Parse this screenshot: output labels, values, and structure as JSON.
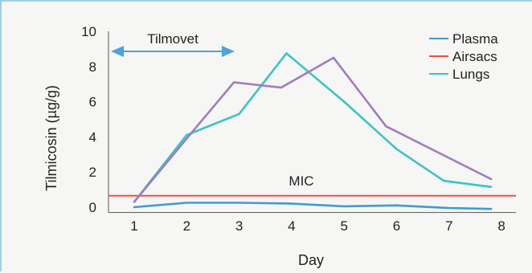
{
  "chart_data": {
    "type": "line",
    "title": "",
    "xlabel": "Day",
    "ylabel": "Tilmicosin (µg/g)",
    "xlim": [
      0.7,
      8.2
    ],
    "ylim": [
      -0.3,
      10
    ],
    "x_ticks": [
      1,
      2,
      3,
      4,
      5,
      6,
      7,
      8
    ],
    "y_ticks": [
      0,
      2,
      4,
      6,
      8,
      10
    ],
    "x_tick_labels": [
      "1",
      "2",
      "3",
      "4",
      "5",
      "6",
      "7",
      "8"
    ],
    "y_tick_labels": [
      "0",
      "2",
      "4",
      "6",
      "8",
      "10"
    ],
    "grid": false,
    "legend_position": "top-right",
    "legend": [
      {
        "name": "Plasma",
        "color": "#3f9bd6"
      },
      {
        "name": "Airsacs",
        "color": "#ee4d4d"
      },
      {
        "name": "Lungs",
        "color": "#3bc4c4"
      }
    ],
    "series": [
      {
        "name": "Plasma",
        "color": "#3f9bd6",
        "x": [
          1,
          2,
          3,
          4,
          5,
          6,
          7,
          7.8
        ],
        "y": [
          0.0,
          0.25,
          0.25,
          0.2,
          0.05,
          0.1,
          -0.05,
          -0.1
        ]
      },
      {
        "name": "Lungs",
        "color": "#3bc4c4",
        "x": [
          1,
          2,
          3,
          3.9,
          5,
          6,
          6.9,
          7.8
        ],
        "y": [
          0.3,
          4.1,
          5.3,
          8.75,
          6.0,
          3.3,
          1.5,
          1.15
        ]
      },
      {
        "name": "",
        "color": "#a07cc0",
        "x": [
          1,
          2,
          2.9,
          3.8,
          4.8,
          5.8,
          7.8
        ],
        "y": [
          0.3,
          3.9,
          7.1,
          6.8,
          8.5,
          4.6,
          1.6
        ]
      }
    ],
    "reference_line": {
      "label": "MIC",
      "y": 0.65,
      "color": "#ee4d4d"
    },
    "annotation": {
      "label": "Tilmovet",
      "x_start": 0.7,
      "x_end": 2.9,
      "y": 9.0,
      "color": "#4aa3df"
    }
  }
}
